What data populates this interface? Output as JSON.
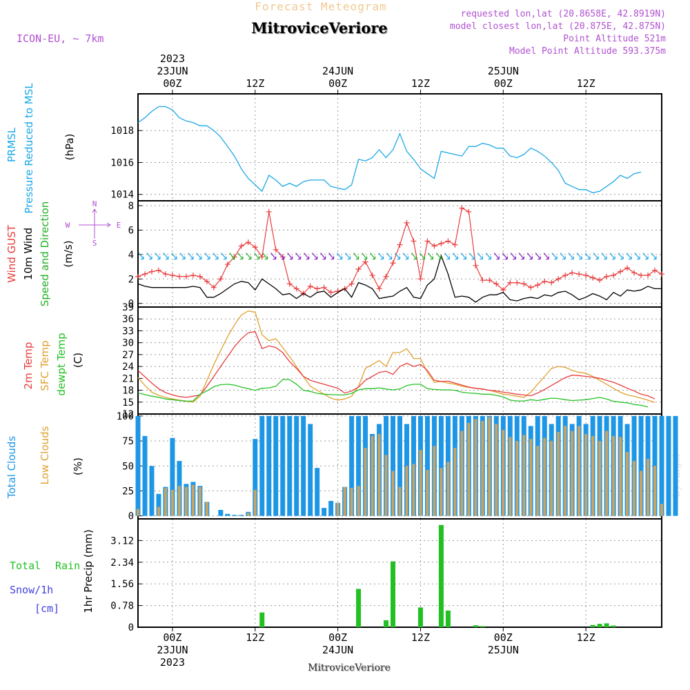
{
  "header": {
    "top_title": "Forecast Meteogram",
    "location": "MitroviceVeriore",
    "model": "ICON-EU, ~ 7km",
    "requested": "requested lon,lat (20.8658E, 42.8919N)",
    "closest": "model closest lon,lat (20.875E, 42.875N)",
    "point_altitude": "Point Altitude 521m",
    "model_altitude": "Model Point Altitude 593.375m",
    "watermark": "by Angel",
    "bottom_label": "MitroviceVeriore"
  },
  "time_axis": {
    "top_labels": [
      {
        "hour": 0,
        "lines": [
          "2023",
          "23JUN",
          "00Z"
        ]
      },
      {
        "hour": 12,
        "lines": [
          "12Z"
        ]
      },
      {
        "hour": 24,
        "lines": [
          "24JUN",
          "00Z"
        ]
      },
      {
        "hour": 36,
        "lines": [
          "12Z"
        ]
      },
      {
        "hour": 48,
        "lines": [
          "25JUN",
          "00Z"
        ]
      },
      {
        "hour": 60,
        "lines": [
          "12Z"
        ]
      }
    ],
    "bottom_labels": [
      {
        "hour": 0,
        "lines": [
          "00Z",
          "23JUN",
          "2023"
        ]
      },
      {
        "hour": 12,
        "lines": [
          "12Z"
        ]
      },
      {
        "hour": 24,
        "lines": [
          "00Z",
          "24JUN"
        ]
      },
      {
        "hour": 36,
        "lines": [
          "12Z"
        ]
      },
      {
        "hour": 48,
        "lines": [
          "00Z",
          "25JUN"
        ]
      },
      {
        "hour": 60,
        "lines": [
          "12Z"
        ]
      }
    ],
    "start_hour": -5,
    "end_hour": 71
  },
  "colors": {
    "pressure": "#1aa7e6",
    "gust": "#e83c3c",
    "wind": "#000000",
    "direction": "#22b022",
    "temp": "#e83c3c",
    "sfc_temp": "#e0a030",
    "dewpt": "#22c022",
    "total_clouds": "#1e96e6",
    "low_clouds": "#c8a464",
    "rain": "#22c022",
    "snow": "#4040e0",
    "model": "#b050d0"
  },
  "chart_data": [
    {
      "type": "line",
      "ylabel": [
        "PRMSL",
        "Pressure Reduced to MSL"
      ],
      "unit": "(hPa)",
      "ylim": [
        1013.6,
        1020.3
      ],
      "yticks": [
        1014,
        1016,
        1018
      ],
      "grid": true,
      "series": [
        {
          "name": "PRMSL",
          "start_hour": -5,
          "step": 1,
          "values": [
            1018.5,
            1018.8,
            1019.2,
            1019.5,
            1019.5,
            1019.3,
            1018.8,
            1018.6,
            1018.5,
            1018.3,
            1018.3,
            1018.0,
            1017.6,
            1017.0,
            1016.4,
            1015.6,
            1015.0,
            1014.6,
            1014.2,
            1015.2,
            1014.9,
            1014.5,
            1014.7,
            1014.5,
            1014.8,
            1014.9,
            1014.9,
            1014.9,
            1014.5,
            1014.4,
            1014.3,
            1014.6,
            1016.2,
            1016.1,
            1016.3,
            1016.8,
            1016.3,
            1016.8,
            1017.8,
            1016.7,
            1016.2,
            1015.6,
            1015.3,
            1015.0,
            1016.7,
            1016.6,
            1016.5,
            1016.4,
            1017.0,
            1017.0,
            1017.2,
            1017.1,
            1016.9,
            1016.9,
            1016.4,
            1016.3,
            1016.5,
            1016.9,
            1016.7,
            1016.4,
            1016.0,
            1015.5,
            1014.7,
            1014.5,
            1014.3,
            1014.3,
            1014.1,
            1014.2,
            1014.5,
            1014.8,
            1015.2,
            1015.0,
            1015.3,
            1015.4
          ]
        }
      ]
    },
    {
      "type": "line",
      "ylabel": [
        "Wind GUST",
        "10m Wind",
        "Speed and Direction"
      ],
      "unit": "(m/s)",
      "ylim": [
        -0.3,
        8.4
      ],
      "yticks": [
        0,
        2,
        4,
        6,
        8
      ],
      "grid": true,
      "compass": [
        "N",
        "S",
        "W",
        "E"
      ],
      "series": [
        {
          "name": "Wind GUST",
          "start_hour": -5,
          "step": 1,
          "values": [
            2.2,
            2.4,
            2.6,
            2.7,
            2.4,
            2.3,
            2.2,
            2.2,
            2.3,
            2.2,
            1.8,
            1.3,
            2.0,
            3.2,
            3.8,
            4.7,
            5.0,
            4.6,
            3.8,
            7.5,
            4.4,
            3.8,
            1.6,
            1.2,
            0.8,
            1.4,
            1.2,
            1.3,
            0.9,
            1.0,
            1.2,
            1.6,
            2.8,
            3.4,
            2.3,
            1.2,
            2.2,
            3.3,
            4.8,
            6.6,
            5.1,
            2.0,
            5.1,
            4.7,
            4.9,
            5.1,
            4.8,
            7.8,
            7.5,
            3.1,
            1.9,
            1.9,
            1.6,
            1.1,
            1.7,
            1.7,
            1.6,
            1.3,
            1.5,
            1.8,
            1.7,
            2.0,
            2.3,
            2.5,
            2.4,
            2.3,
            2.1,
            1.9,
            2.2,
            2.3,
            2.6,
            2.9,
            2.5,
            2.3,
            2.3,
            2.7,
            2.4
          ]
        },
        {
          "name": "10m Wind",
          "start_hour": -5,
          "step": 1,
          "values": [
            1.6,
            1.4,
            1.3,
            1.3,
            1.3,
            1.3,
            1.3,
            1.3,
            1.4,
            1.3,
            0.5,
            0.5,
            0.8,
            1.2,
            1.6,
            1.8,
            1.7,
            1.1,
            2.0,
            1.6,
            1.2,
            0.7,
            0.8,
            0.4,
            0.8,
            0.5,
            0.9,
            1.0,
            0.5,
            0.9,
            1.2,
            0.5,
            1.7,
            1.5,
            1.2,
            0.4,
            0.5,
            0.6,
            1.0,
            1.3,
            0.5,
            0.4,
            1.5,
            2.0,
            3.9,
            2.4,
            0.5,
            0.6,
            0.5,
            0.1,
            0.5,
            0.7,
            0.7,
            0.9,
            0.3,
            0.2,
            0.4,
            0.5,
            0.4,
            0.7,
            0.6,
            0.9,
            1.0,
            0.7,
            0.3,
            0.5,
            0.8,
            0.6,
            0.3,
            0.9,
            0.6,
            1.1,
            1.0,
            1.1,
            1.4,
            1.2,
            1.2
          ]
        }
      ]
    },
    {
      "type": "line",
      "ylabel": [
        "2m Temp",
        "SFC Temp",
        "dewpt Temp"
      ],
      "unit": "(C)",
      "ylim": [
        12,
        39
      ],
      "yticks": [
        12,
        15,
        18,
        21,
        24,
        27,
        30,
        33,
        36,
        39
      ],
      "grid": true,
      "series": [
        {
          "name": "2m Temp",
          "start_hour": -5,
          "step": 1,
          "values": [
            23.0,
            21.4,
            19.8,
            18.4,
            17.4,
            16.8,
            16.4,
            16.2,
            16.5,
            16.8,
            19.0,
            21.5,
            24.0,
            26.5,
            29.0,
            31.0,
            32.5,
            32.8,
            28.5,
            29.2,
            28.8,
            27.5,
            25.2,
            23.5,
            21.5,
            20.5,
            20.0,
            19.5,
            19.0,
            18.5,
            17.3,
            17.8,
            18.8,
            20.5,
            21.5,
            22.5,
            22.8,
            22.0,
            24.0,
            24.8,
            24.0,
            24.5,
            23.0,
            20.5,
            20.2,
            20.3,
            19.8,
            19.3,
            18.8,
            18.5,
            18.3,
            18.0,
            17.8,
            17.5,
            17.3,
            17.0,
            16.8,
            16.6,
            17.3,
            18.2,
            19.2,
            20.2,
            21.2,
            21.8,
            21.7,
            21.5,
            21.3,
            21.0,
            20.5,
            20.0,
            19.3,
            18.5,
            17.8,
            17.0,
            16.6,
            15.8
          ]
        },
        {
          "name": "SFC Temp",
          "start_hour": -5,
          "step": 1,
          "values": [
            21.2,
            19.2,
            17.5,
            16.7,
            16.2,
            15.8,
            15.5,
            15.3,
            15.0,
            16.5,
            20.5,
            24.5,
            28.0,
            31.5,
            34.5,
            37.0,
            38.0,
            37.7,
            32.0,
            30.5,
            31.0,
            28.8,
            26.5,
            24.0,
            21.5,
            19.0,
            18.0,
            17.0,
            16.0,
            15.5,
            15.8,
            16.5,
            19.0,
            23.5,
            24.5,
            25.5,
            24.0,
            27.5,
            27.5,
            28.5,
            26.0,
            26.0,
            22.5,
            20.0,
            20.2,
            19.8,
            19.5,
            19.0,
            18.7,
            18.5,
            18.3,
            18.0,
            17.5,
            17.0,
            16.8,
            16.5,
            16.2,
            17.5,
            19.5,
            21.5,
            23.5,
            24.0,
            23.8,
            23.0,
            22.5,
            22.3,
            21.5,
            20.5,
            19.5,
            18.5,
            17.5,
            16.8,
            16.5,
            16.0,
            15.5,
            14.9
          ]
        },
        {
          "name": "dewpt Temp",
          "start_hour": -5,
          "step": 1,
          "values": [
            17.3,
            16.9,
            16.5,
            16.2,
            15.8,
            15.6,
            15.4,
            15.2,
            15.3,
            17.0,
            17.8,
            18.9,
            19.4,
            19.5,
            19.3,
            18.8,
            18.4,
            18.0,
            18.5,
            18.6,
            19.0,
            20.7,
            20.7,
            19.5,
            18.0,
            17.7,
            17.2,
            17.0,
            16.9,
            16.8,
            16.8,
            17.2,
            18.1,
            18.4,
            18.4,
            18.6,
            18.3,
            18.1,
            18.3,
            19.2,
            19.5,
            19.5,
            18.4,
            18.2,
            18.1,
            18.1,
            18.0,
            17.5,
            17.3,
            17.2,
            17.0,
            17.0,
            16.7,
            16.3,
            15.5,
            15.3,
            15.3,
            15.6,
            15.4,
            15.7,
            16.0,
            15.9,
            15.6,
            15.4,
            15.5,
            15.6,
            15.9,
            16.2,
            15.8,
            15.2,
            15.0,
            14.8,
            14.4,
            14.2,
            13.8
          ]
        }
      ]
    },
    {
      "type": "bar",
      "ylabel": [
        "Total Clouds",
        "Low Clouds"
      ],
      "unit": "(%)",
      "ylim": [
        -3,
        102
      ],
      "yticks": [
        0,
        25,
        50,
        75,
        100
      ],
      "grid": true,
      "series": [
        {
          "name": "Total Clouds",
          "start_hour": -5,
          "step": 1,
          "values": [
            100,
            80,
            50,
            22,
            29,
            78,
            55,
            32,
            34,
            30,
            14,
            0,
            6,
            2,
            1,
            1,
            4,
            77,
            100,
            100,
            100,
            100,
            100,
            100,
            100,
            92,
            48,
            8,
            15,
            13,
            29,
            100,
            100,
            100,
            82,
            92,
            100,
            100,
            100,
            92,
            100,
            100,
            100,
            100,
            100,
            100,
            100,
            100,
            100,
            100,
            100,
            100,
            100,
            100,
            100,
            100,
            100,
            90,
            100,
            100,
            92,
            100,
            100,
            92,
            100,
            92,
            100,
            100,
            100,
            100,
            100,
            92,
            100,
            100,
            100,
            100,
            100,
            100,
            100
          ]
        },
        {
          "name": "Low Clouds",
          "start_hour": -5,
          "step": 1,
          "values": [
            7,
            0,
            0,
            9,
            28,
            26,
            30,
            29,
            31,
            29,
            14,
            0,
            0,
            0,
            0,
            0,
            3,
            26,
            0,
            0,
            0,
            0,
            0,
            0,
            0,
            0,
            0,
            0,
            0,
            13,
            29,
            28,
            30,
            68,
            80,
            82,
            61,
            45,
            29,
            50,
            52,
            66,
            46,
            70,
            48,
            54,
            68,
            85,
            93,
            97,
            95,
            99,
            92,
            86,
            79,
            75,
            81,
            77,
            70,
            78,
            75,
            84,
            90,
            85,
            90,
            82,
            80,
            75,
            85,
            80,
            79,
            64,
            55,
            45,
            57,
            50,
            12,
            0
          ]
        }
      ]
    },
    {
      "type": "bar",
      "ylabel": [
        "1hr Precip (mm)"
      ],
      "unit": "",
      "legend": [
        "Total",
        "Rain",
        "Snow/1h",
        "[cm]"
      ],
      "ylim": [
        0,
        3.9
      ],
      "yticks": [
        0,
        0.78,
        1.56,
        2.34,
        3.12
      ],
      "ytick_labels": [
        "0",
        "0.78",
        "1.56",
        "2.34",
        "3.12"
      ],
      "grid": true,
      "series": [
        {
          "name": "Total Rain",
          "start_hour": -5,
          "step": 1,
          "values": [
            0,
            0,
            0,
            0,
            0,
            0,
            0,
            0,
            0,
            0,
            0,
            0,
            0,
            0,
            0,
            0,
            0,
            0,
            0.53,
            0,
            0,
            0,
            0,
            0,
            0,
            0,
            0,
            0,
            0,
            0,
            0,
            0,
            1.38,
            0,
            0,
            0,
            0.25,
            2.37,
            0,
            0,
            0,
            0.71,
            0,
            0,
            3.68,
            0.6,
            0,
            0,
            0,
            0.07,
            0.04,
            0,
            0,
            0,
            0,
            0,
            0,
            0,
            0,
            0,
            0,
            0,
            0,
            0,
            0,
            0,
            0.08,
            0.12,
            0.14,
            0.06,
            0,
            0,
            0,
            0,
            0,
            0,
            0
          ]
        }
      ]
    }
  ]
}
